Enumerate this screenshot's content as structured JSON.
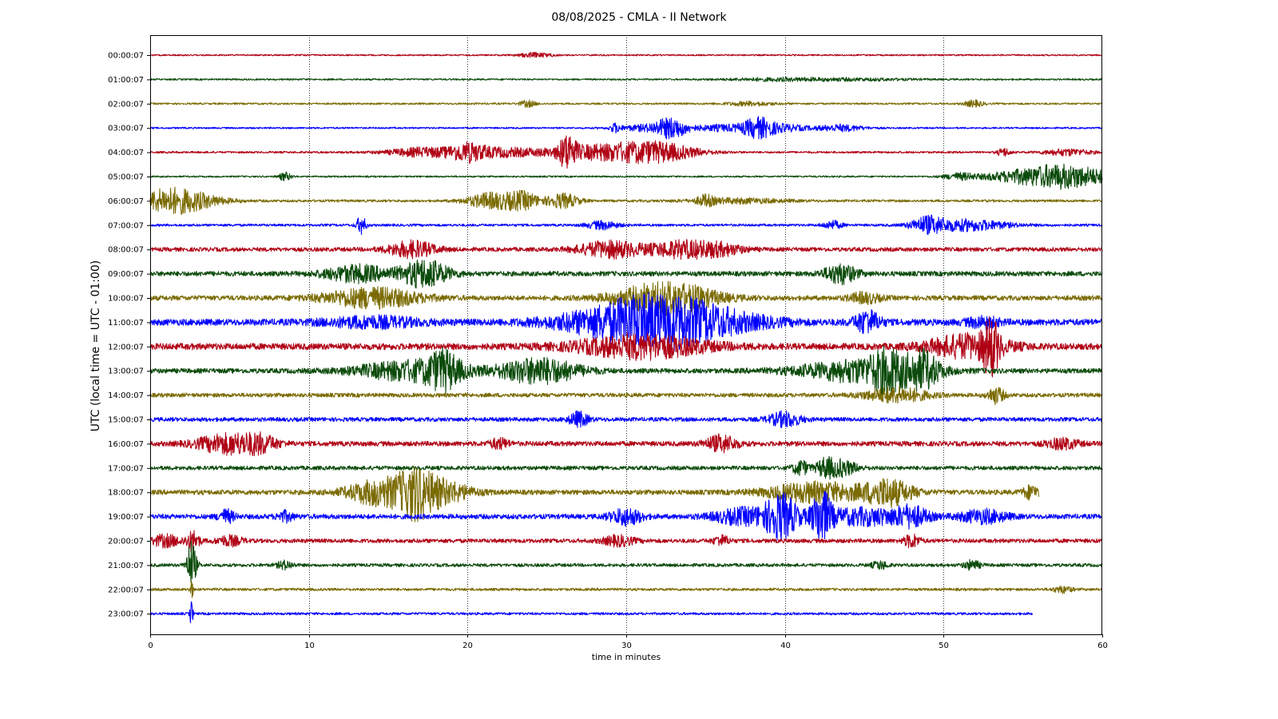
{
  "chart_data": {
    "type": "line",
    "title": "08/08/2025 - CMLA - II Network",
    "xlabel": "time in minutes",
    "ylabel": "UTC (local time = UTC - 01:00)",
    "xlim": [
      0,
      60
    ],
    "x_ticks": [
      "0",
      "10",
      "20",
      "30",
      "40",
      "50",
      "60"
    ],
    "grid": "vertical dotted lines at x = 10, 20, 30, 40, 50",
    "colors": [
      "#b00014",
      "#0a4a0a",
      "#7a6a00",
      "#0000ff"
    ],
    "series": [
      {
        "label": "00:00:07",
        "color": "#b00014",
        "noise": 0.9,
        "end": 60,
        "events": [
          [
            24.3,
            1.0,
            3.0
          ]
        ]
      },
      {
        "label": "01:00:07",
        "color": "#0a4a0a",
        "noise": 1.0,
        "end": 60,
        "events": [
          [
            39.0,
            3.0,
            1.5
          ],
          [
            44.0,
            4.0,
            1.5
          ]
        ]
      },
      {
        "label": "02:00:07",
        "color": "#7a6a00",
        "noise": 1.1,
        "end": 60,
        "events": [
          [
            23.8,
            0.5,
            4.0
          ],
          [
            37.8,
            1.5,
            2.5
          ],
          [
            51.9,
            0.6,
            4.0
          ]
        ]
      },
      {
        "label": "03:00:07",
        "color": "#0000ff",
        "noise": 1.0,
        "end": 60,
        "events": [
          [
            29.3,
            0.3,
            5.0
          ],
          [
            31.5,
            2.0,
            4.0
          ],
          [
            32.9,
            1.0,
            11.0
          ],
          [
            36.0,
            1.5,
            4.0
          ],
          [
            38.3,
            1.0,
            12.0
          ],
          [
            40.0,
            1.5,
            4.0
          ],
          [
            43.5,
            1.5,
            4.0
          ]
        ]
      },
      {
        "label": "04:00:07",
        "color": "#b00014",
        "noise": 1.2,
        "end": 60,
        "events": [
          [
            17.5,
            2.5,
            6.0
          ],
          [
            20.0,
            1.0,
            9.0
          ],
          [
            22.0,
            2.0,
            5.0
          ],
          [
            26.3,
            0.5,
            18.0
          ],
          [
            28.5,
            4.0,
            9.0
          ],
          [
            32.0,
            2.5,
            9.0
          ],
          [
            53.8,
            0.4,
            5.0
          ],
          [
            57.8,
            1.5,
            4.0
          ]
        ]
      },
      {
        "label": "05:00:07",
        "color": "#0a4a0a",
        "noise": 1.0,
        "end": 60,
        "events": [
          [
            8.5,
            0.4,
            5.0
          ],
          [
            51.0,
            1.0,
            4.0
          ],
          [
            54.0,
            2.0,
            3.0
          ],
          [
            57.5,
            3.0,
            15.0
          ]
        ]
      },
      {
        "label": "06:00:07",
        "color": "#7a6a00",
        "noise": 1.5,
        "end": 60,
        "events": [
          [
            1.5,
            2.5,
            16.0
          ],
          [
            21.5,
            1.5,
            10.0
          ],
          [
            23.5,
            1.0,
            10.0
          ],
          [
            26.0,
            1.0,
            9.0
          ],
          [
            35.0,
            0.5,
            6.0
          ],
          [
            37.0,
            3.0,
            3.0
          ]
        ]
      },
      {
        "label": "07:00:07",
        "color": "#0000ff",
        "noise": 1.5,
        "end": 60,
        "events": [
          [
            13.3,
            0.3,
            11.0
          ],
          [
            28.5,
            1.0,
            5.0
          ],
          [
            43.0,
            0.6,
            5.0
          ],
          [
            49.0,
            1.0,
            9.0
          ],
          [
            51.5,
            2.5,
            7.0
          ]
        ]
      },
      {
        "label": "08:00:07",
        "color": "#b00014",
        "noise": 2.5,
        "end": 60,
        "events": [
          [
            16.5,
            1.5,
            10.0
          ],
          [
            29.0,
            2.0,
            10.0
          ],
          [
            33.5,
            2.0,
            10.0
          ],
          [
            36.0,
            1.5,
            6.0
          ]
        ]
      },
      {
        "label": "09:00:07",
        "color": "#0a4a0a",
        "noise": 3.0,
        "end": 60,
        "events": [
          [
            13.0,
            2.0,
            10.0
          ],
          [
            17.3,
            1.5,
            17.0
          ],
          [
            43.5,
            1.0,
            12.0
          ]
        ]
      },
      {
        "label": "10:00:07",
        "color": "#7a6a00",
        "noise": 3.0,
        "end": 60,
        "events": [
          [
            14.0,
            3.0,
            12.0
          ],
          [
            32.5,
            3.0,
            20.0
          ],
          [
            45.0,
            1.0,
            6.0
          ]
        ]
      },
      {
        "label": "11:00:07",
        "color": "#0000ff",
        "noise": 4.0,
        "end": 60,
        "events": [
          [
            14.0,
            3.0,
            6.0
          ],
          [
            32.0,
            5.0,
            34.0
          ],
          [
            45.2,
            0.8,
            14.0
          ],
          [
            52.5,
            1.0,
            6.0
          ]
        ]
      },
      {
        "label": "12:00:07",
        "color": "#b00014",
        "noise": 4.0,
        "end": 60,
        "events": [
          [
            31.0,
            4.0,
            14.0
          ],
          [
            51.5,
            2.5,
            14.0
          ],
          [
            53.0,
            0.5,
            28.0
          ]
        ]
      },
      {
        "label": "13:00:07",
        "color": "#0a4a0a",
        "noise": 3.0,
        "end": 60,
        "events": [
          [
            16.5,
            3.5,
            12.0
          ],
          [
            18.5,
            1.0,
            18.0
          ],
          [
            24.5,
            2.5,
            16.0
          ],
          [
            45.0,
            4.0,
            14.0
          ],
          [
            46.5,
            1.0,
            18.0
          ],
          [
            48.7,
            1.0,
            20.0
          ]
        ]
      },
      {
        "label": "14:00:07",
        "color": "#7a6a00",
        "noise": 2.5,
        "end": 60,
        "events": [
          [
            47.0,
            2.0,
            9.0
          ],
          [
            53.3,
            0.5,
            10.0
          ]
        ]
      },
      {
        "label": "15:00:07",
        "color": "#0000ff",
        "noise": 2.5,
        "end": 60,
        "events": [
          [
            27.0,
            0.6,
            9.0
          ],
          [
            40.0,
            1.0,
            9.0
          ]
        ]
      },
      {
        "label": "16:00:07",
        "color": "#b00014",
        "noise": 3.0,
        "end": 60,
        "events": [
          [
            5.0,
            2.0,
            12.0
          ],
          [
            7.0,
            1.0,
            8.0
          ],
          [
            22.0,
            0.6,
            6.0
          ],
          [
            36.0,
            1.0,
            10.0
          ],
          [
            57.5,
            1.0,
            6.0
          ]
        ]
      },
      {
        "label": "17:00:07",
        "color": "#0a4a0a",
        "noise": 2.5,
        "end": 60,
        "events": [
          [
            41.0,
            0.5,
            9.0
          ],
          [
            42.5,
            0.5,
            9.0
          ],
          [
            43.5,
            1.0,
            10.0
          ]
        ]
      },
      {
        "label": "18:00:07",
        "color": "#7a6a00",
        "noise": 3.0,
        "end": 56,
        "events": [
          [
            14.5,
            2.0,
            16.0
          ],
          [
            16.7,
            1.0,
            20.0
          ],
          [
            18.0,
            2.0,
            16.0
          ],
          [
            42.0,
            3.0,
            12.0
          ],
          [
            46.5,
            1.5,
            16.0
          ],
          [
            55.5,
            0.5,
            8.0
          ]
        ]
      },
      {
        "label": "19:00:07",
        "color": "#0000ff",
        "noise": 3.0,
        "end": 60,
        "events": [
          [
            4.8,
            0.5,
            8.0
          ],
          [
            8.5,
            0.5,
            6.0
          ],
          [
            30.0,
            1.0,
            10.0
          ],
          [
            37.5,
            2.0,
            10.0
          ],
          [
            39.8,
            1.0,
            26.0
          ],
          [
            42.3,
            0.6,
            30.0
          ],
          [
            45.0,
            3.0,
            10.0
          ],
          [
            48.0,
            1.0,
            10.0
          ],
          [
            52.5,
            1.5,
            8.0
          ]
        ]
      },
      {
        "label": "20:00:07",
        "color": "#b00014",
        "noise": 2.5,
        "end": 60,
        "events": [
          [
            1.0,
            1.0,
            7.0
          ],
          [
            2.7,
            0.4,
            12.0
          ],
          [
            5.0,
            0.8,
            6.0
          ],
          [
            29.5,
            1.0,
            6.0
          ],
          [
            36.0,
            0.5,
            6.0
          ],
          [
            48.0,
            0.5,
            8.0
          ]
        ]
      },
      {
        "label": "21:00:07",
        "color": "#0a4a0a",
        "noise": 2.0,
        "end": 60,
        "events": [
          [
            2.6,
            0.3,
            30.0
          ],
          [
            8.5,
            0.5,
            5.0
          ],
          [
            46.0,
            0.5,
            5.0
          ],
          [
            51.8,
            0.5,
            6.0
          ]
        ]
      },
      {
        "label": "22:00:07",
        "color": "#7a6a00",
        "noise": 1.6,
        "end": 60,
        "events": [
          [
            2.6,
            0.1,
            14.0
          ],
          [
            57.5,
            0.6,
            4.0
          ]
        ]
      },
      {
        "label": "23:00:07",
        "color": "#0000ff",
        "noise": 1.5,
        "end": 55.6,
        "events": [
          [
            2.6,
            0.1,
            16.0
          ]
        ]
      }
    ]
  }
}
